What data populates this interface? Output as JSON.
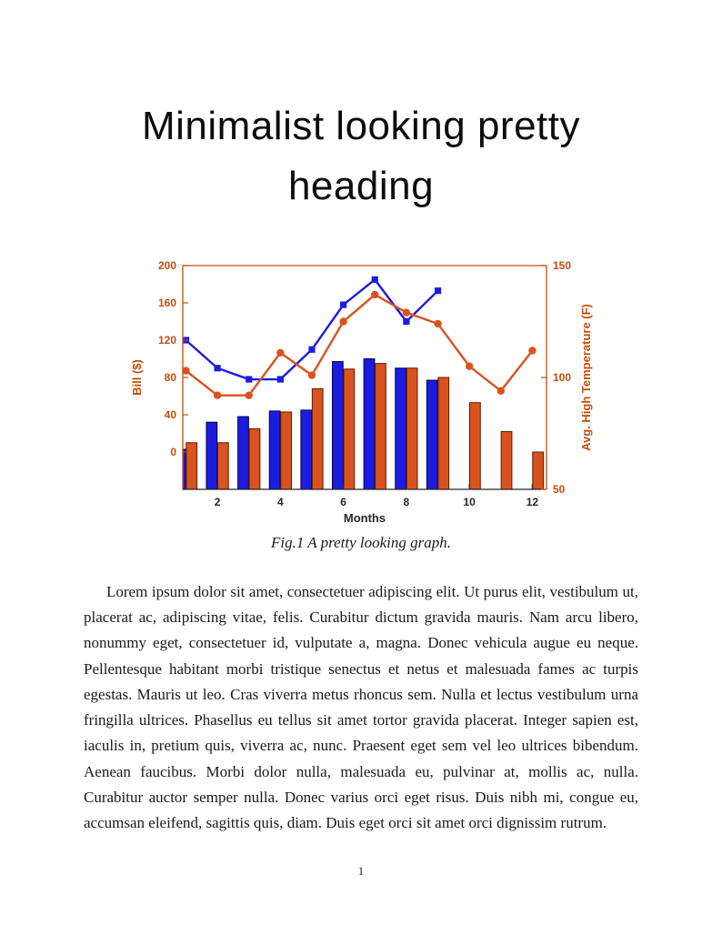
{
  "document": {
    "heading_lines": [
      "Minimalist looking pretty",
      "heading"
    ],
    "figure": {
      "caption": "Fig.1 A pretty looking graph."
    },
    "paragraph": "Lorem ipsum dolor sit amet, consectetuer adipiscing elit. Ut purus elit, vestibulum ut, placerat ac, adipiscing vitae, felis. Curabitur dictum gravida mauris. Nam arcu libero, nonummy eget, consectetuer id, vulputate a, magna. Donec vehicula augue eu neque. Pellentesque habitant morbi tristique senectus et netus et malesuada fames ac turpis egestas. Mauris ut leo. Cras viverra metus rhoncus sem. Nulla et lectus vestibulum urna fringilla ultrices. Phasellus eu tellus sit amet tortor gravida placerat. Integer sapien est, iaculis in, pretium quis, viverra ac, nunc. Praesent eget sem vel leo ultrices bibendum. Aenean faucibus. Morbi dolor nulla, malesuada eu, pulvinar at, mollis ac, nulla. Curabitur auctor semper nulla. Donec varius orci eget risus. Duis nibh mi, congue eu, accumsan eleifend, sagittis quis, diam. Duis eget orci sit amet orci dignissim rutrum.",
    "page_number": "1"
  },
  "chart_data": {
    "type": "bar",
    "title": "",
    "xlabel": "Months",
    "x": [
      1,
      2,
      3,
      4,
      5,
      6,
      7,
      8,
      9,
      10,
      11,
      12
    ],
    "x_ticks": [
      2,
      4,
      6,
      8,
      10,
      12
    ],
    "xlim": [
      0.9,
      12.45
    ],
    "grid": false,
    "legend": "none",
    "axis_color": "#c44d0e",
    "x_axis_color": "#262626",
    "left_axis": {
      "label": "Bill ($)",
      "ticks": [
        0,
        40,
        80,
        120,
        160,
        200
      ],
      "lim": [
        -40,
        200
      ]
    },
    "right_axis": {
      "label": "Avg. High Temperature (F)",
      "ticks": [
        50,
        100,
        150
      ],
      "lim": [
        50,
        150
      ]
    },
    "series": [
      {
        "name": "bill-bars-blue",
        "type": "bar",
        "axis": "left",
        "color": "#1c1ce0",
        "edge": "#000050",
        "values": [
          3,
          32,
          38,
          44,
          45,
          97,
          100,
          90,
          77,
          null,
          null,
          null
        ]
      },
      {
        "name": "bill-bars-orange",
        "type": "bar",
        "axis": "left",
        "color": "#d9531e",
        "edge": "#5c1d00",
        "values": [
          10,
          10,
          25,
          43,
          68,
          89,
          95,
          90,
          80,
          53,
          22,
          0
        ]
      },
      {
        "name": "bill-line-blue",
        "type": "line",
        "axis": "left",
        "marker": "square",
        "color": "#1c1ce0",
        "values": [
          120,
          90,
          78,
          78,
          110,
          158,
          185,
          140,
          173,
          null,
          null,
          null
        ]
      },
      {
        "name": "temperature-line-orange",
        "type": "line",
        "axis": "right",
        "marker": "circle",
        "color": "#d9531e",
        "values": [
          103,
          92,
          92,
          111,
          101,
          125,
          137,
          129,
          124,
          105,
          94,
          112
        ]
      }
    ]
  }
}
